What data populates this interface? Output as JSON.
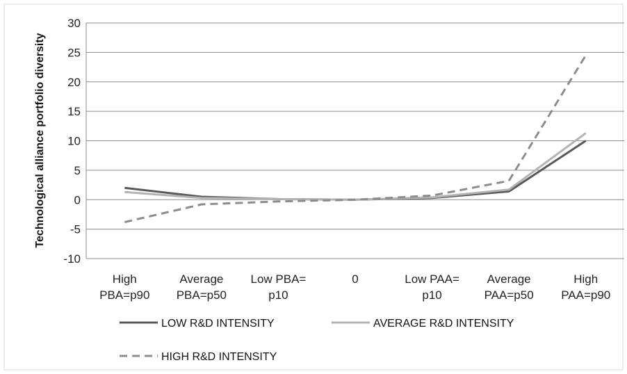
{
  "chart_data": {
    "type": "line",
    "title": "",
    "xlabel": "",
    "ylabel": "Technological alliance portfolio diversity",
    "ylim": [
      -10,
      30
    ],
    "yticks": [
      -10,
      -5,
      0,
      5,
      10,
      15,
      20,
      25,
      30
    ],
    "grid": true,
    "legend_placement": "bottom",
    "categories": [
      [
        "High",
        "PBA=p90"
      ],
      [
        "Average",
        "PBA=p50"
      ],
      [
        "Low PBA=",
        "p10"
      ],
      [
        "0"
      ],
      [
        "Low PAA=",
        "p10"
      ],
      [
        "Average",
        "PAA=p50"
      ],
      [
        "High",
        "PAA=p90"
      ]
    ],
    "series": [
      {
        "name": "LOW R&D INTENSITY",
        "values": [
          2.0,
          0.5,
          0.1,
          0.0,
          0.3,
          1.4,
          10.0
        ],
        "color": "#595959",
        "dash": "solid"
      },
      {
        "name": "AVERAGE R&D INTENSITY",
        "values": [
          1.3,
          0.3,
          0.1,
          0.0,
          0.4,
          1.7,
          11.3
        ],
        "color": "#b3b3b3",
        "dash": "solid"
      },
      {
        "name": "HIGH R&D INTENSITY",
        "values": [
          -3.8,
          -0.8,
          -0.3,
          0.0,
          0.7,
          3.2,
          24.5
        ],
        "color": "#8c8c8c",
        "dash": "dashed"
      }
    ]
  }
}
